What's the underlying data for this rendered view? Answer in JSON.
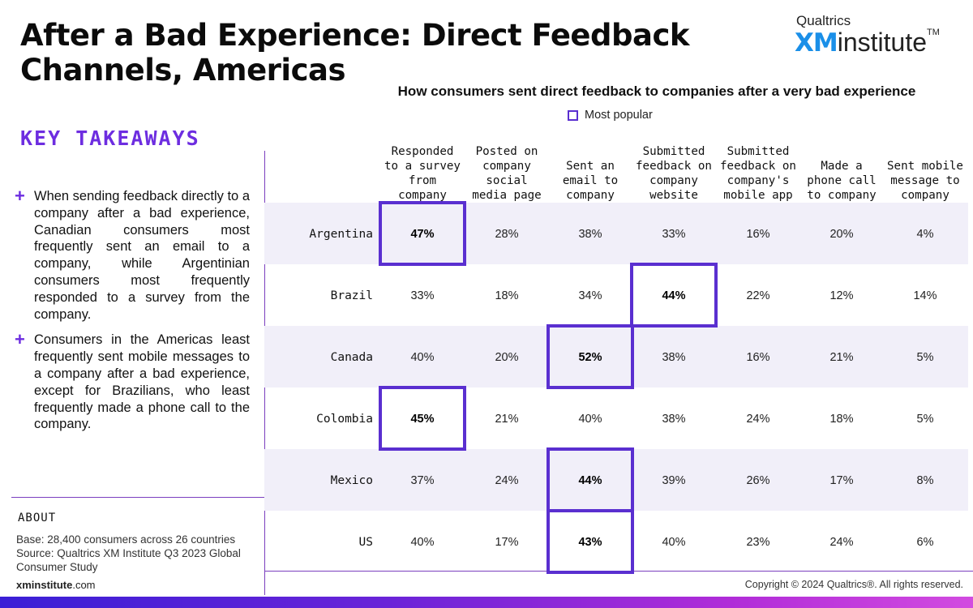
{
  "title": "After a Bad Experience: Direct Feedback Channels, Americas",
  "logo": {
    "top": "Qualtrics",
    "xm": "XM",
    "institute": "institute",
    "tm": "TM"
  },
  "key_takeaways": {
    "title": "KEY TAKEAWAYS",
    "items": [
      "When sending feedback directly to a company after a bad experience, Canadian consumers most frequently sent an email to a company, while Argentinian consumers most frequently responded to a survey from the company.",
      "Consumers in the Americas least frequently sent mobile messages to a company after a bad experience, except for Brazilians, who least frequently made a phone call to the company."
    ]
  },
  "about": {
    "title": "ABOUT",
    "base": "Base: 28,400 consumers across 26 countries",
    "source": "Source: Qualtrics XM Institute Q3 2023 Global Consumer Study"
  },
  "footer": {
    "site_bold": "xminstitute",
    "site_rest": ".com",
    "copyright": "Copyright © 2024 Qualtrics®. All rights reserved."
  },
  "colors": {
    "accent": "#6d2de0",
    "highlight": "#5a2fd0",
    "band": "#f1eff9",
    "brand_blue": "#1a8fe8"
  },
  "chart_data": {
    "type": "table",
    "title": "How consumers sent direct feedback to companies after a very bad experience",
    "legend": "Most popular",
    "columns": [
      [
        "Responded",
        "to a survey",
        "from",
        "company"
      ],
      [
        "Posted on",
        "company",
        "social",
        "media page"
      ],
      [
        "Sent an",
        "email to",
        "company"
      ],
      [
        "Submitted",
        "feedback on",
        "company",
        "website"
      ],
      [
        "Submitted",
        "feedback on",
        "company's",
        "mobile app"
      ],
      [
        "Made a",
        "phone call",
        "to company"
      ],
      [
        "Sent mobile",
        "message to",
        "company"
      ]
    ],
    "rows": [
      "Argentina",
      "Brazil",
      "Canada",
      "Colombia",
      "Mexico",
      "US"
    ],
    "values": [
      [
        47,
        28,
        38,
        33,
        16,
        20,
        4
      ],
      [
        33,
        18,
        34,
        44,
        22,
        12,
        14
      ],
      [
        40,
        20,
        52,
        38,
        16,
        21,
        5
      ],
      [
        45,
        21,
        40,
        38,
        24,
        18,
        5
      ],
      [
        37,
        24,
        44,
        39,
        26,
        17,
        8
      ],
      [
        40,
        17,
        43,
        40,
        23,
        24,
        6
      ]
    ],
    "unit": "%",
    "most_popular_column": [
      0,
      3,
      2,
      0,
      2,
      2
    ]
  }
}
